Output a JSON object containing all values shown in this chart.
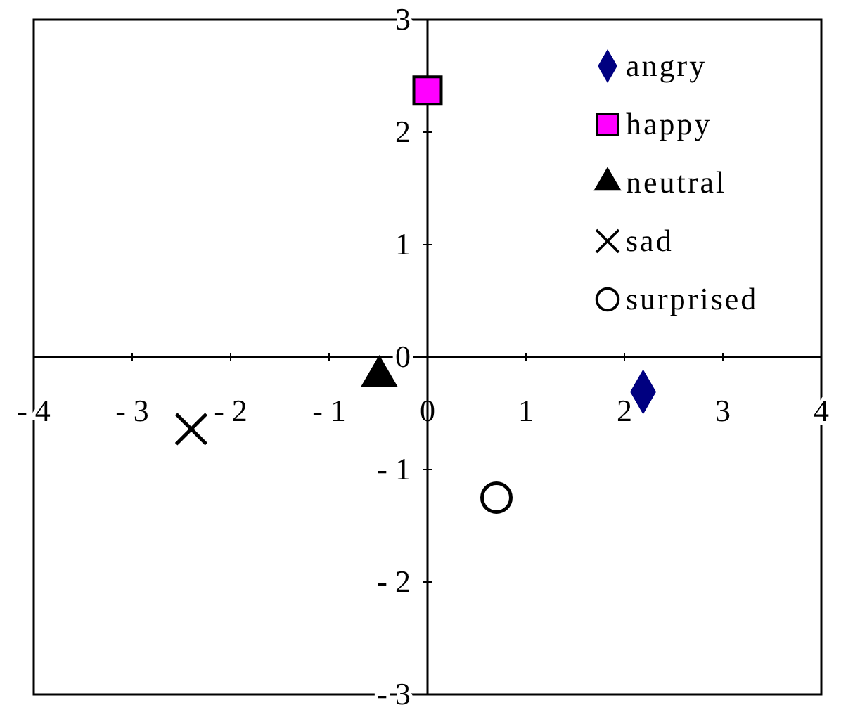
{
  "chart_data": {
    "type": "scatter",
    "xlim": [
      -4,
      4
    ],
    "ylim": [
      -3,
      3
    ],
    "xticks": [
      -4,
      -3,
      -2,
      -1,
      0,
      1,
      2,
      3,
      4
    ],
    "yticks": [
      -3,
      -2,
      -1,
      0,
      1,
      2,
      3
    ],
    "legend": "top right",
    "grid": false,
    "series": [
      {
        "name": "angry",
        "color": "#000080",
        "marker": "diamond",
        "x": [
          2.19
        ],
        "values": [
          -0.31
        ]
      },
      {
        "name": "happy",
        "color": "#ff00ff",
        "marker": "square",
        "x": [
          0
        ],
        "values": [
          2.37
        ]
      },
      {
        "name": "neutral",
        "color": "#000000",
        "marker": "triangle",
        "x": [
          -0.49
        ],
        "values": [
          -0.17
        ]
      },
      {
        "name": "sad",
        "color": "#000000",
        "marker": "cross",
        "x": [
          -2.4
        ],
        "values": [
          -0.64
        ]
      },
      {
        "name": "surprised",
        "color": "#000000",
        "marker": "circle",
        "x": [
          0.7
        ],
        "values": [
          -1.25
        ]
      }
    ]
  }
}
